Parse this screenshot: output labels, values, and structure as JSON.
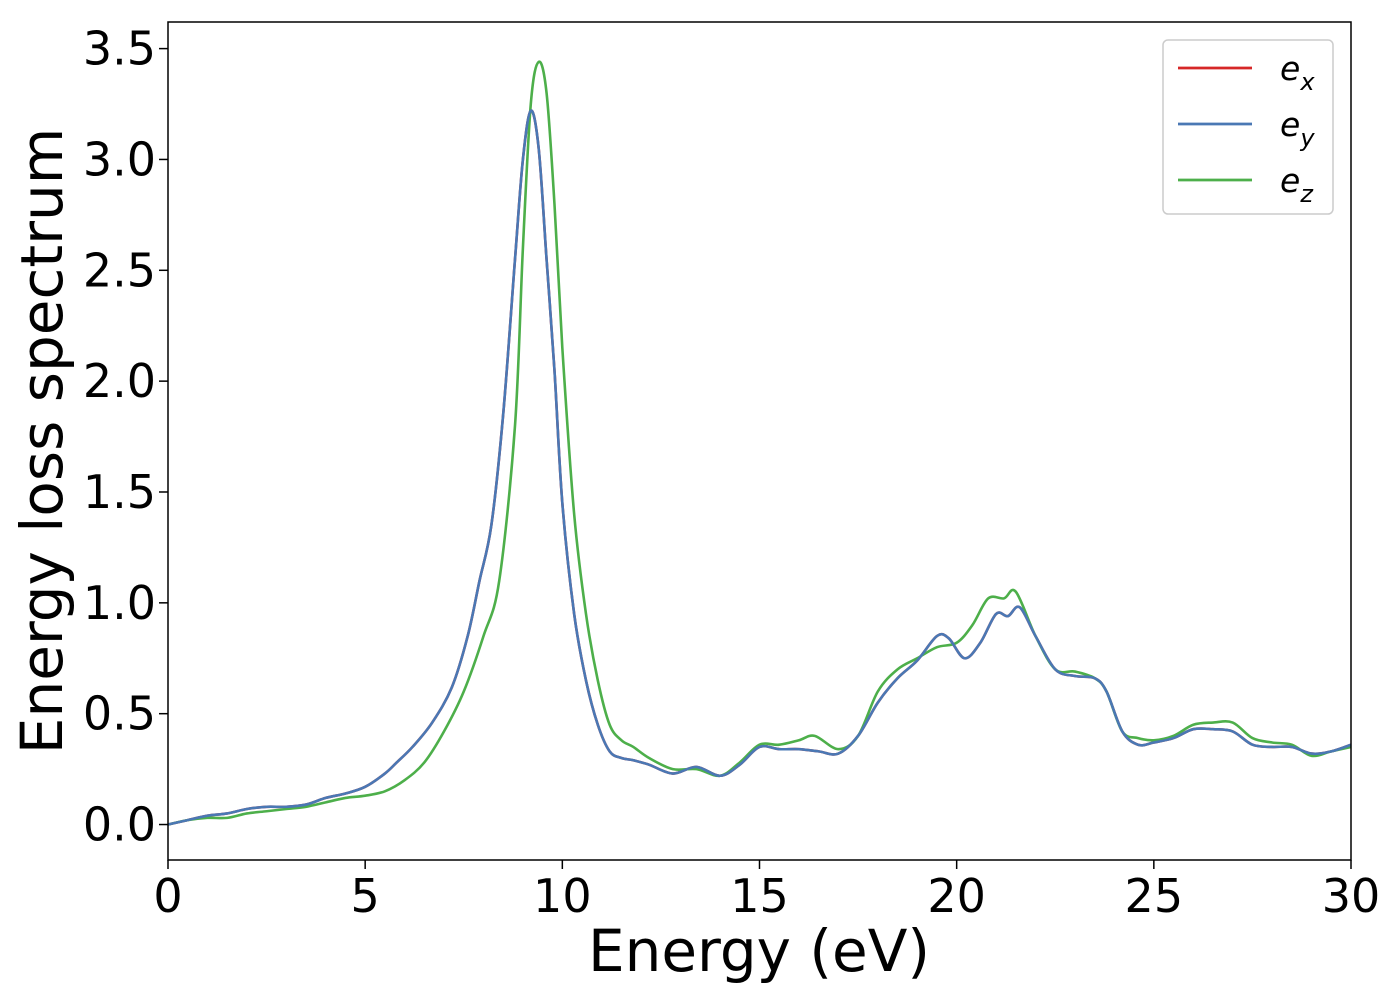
{
  "chart_data": {
    "type": "line",
    "xlabel": "Energy (eV)",
    "ylabel": "Energy loss spectrum",
    "xlim": [
      0,
      30
    ],
    "ylim": [
      -0.16,
      3.62
    ],
    "xticks": [
      "0",
      "5",
      "10",
      "15",
      "20",
      "25",
      "30"
    ],
    "yticks": [
      "0.0",
      "0.5",
      "1.0",
      "1.5",
      "2.0",
      "2.5",
      "3.0",
      "3.5"
    ],
    "grid": false,
    "legend_position": "top-right",
    "series": [
      {
        "name": "e",
        "sub": "x",
        "color": "#d62728",
        "x": [
          0,
          0.5,
          1,
          1.5,
          2,
          2.5,
          3,
          3.5,
          4,
          4.5,
          5,
          5.5,
          5.8,
          6.2,
          6.7,
          7.2,
          7.6,
          7.9,
          8.2,
          8.5,
          8.8,
          9.0,
          9.2,
          9.4,
          9.6,
          9.8,
          10.0,
          10.3,
          10.6,
          10.9,
          11.2,
          11.5,
          11.8,
          12.2,
          12.8,
          13.4,
          14.0,
          14.5,
          15.0,
          15.5,
          16.0,
          16.5,
          17.0,
          17.5,
          18.0,
          18.5,
          19.0,
          19.5,
          19.8,
          20.2,
          20.6,
          21.0,
          21.3,
          21.6,
          22.0,
          22.5,
          23.0,
          23.5,
          23.8,
          24.2,
          24.6,
          25.0,
          25.5,
          26.0,
          26.5,
          27.0,
          27.5,
          28.0,
          28.5,
          29.0,
          29.5,
          30.0
        ],
        "values": [
          0.0,
          0.02,
          0.04,
          0.05,
          0.07,
          0.08,
          0.08,
          0.09,
          0.12,
          0.14,
          0.17,
          0.23,
          0.28,
          0.35,
          0.46,
          0.62,
          0.85,
          1.1,
          1.35,
          1.85,
          2.55,
          3.0,
          3.22,
          3.05,
          2.55,
          2.05,
          1.45,
          0.95,
          0.65,
          0.45,
          0.33,
          0.3,
          0.29,
          0.27,
          0.23,
          0.26,
          0.22,
          0.27,
          0.35,
          0.34,
          0.34,
          0.33,
          0.32,
          0.4,
          0.55,
          0.66,
          0.74,
          0.85,
          0.84,
          0.75,
          0.82,
          0.95,
          0.94,
          0.98,
          0.85,
          0.7,
          0.67,
          0.66,
          0.6,
          0.42,
          0.36,
          0.37,
          0.39,
          0.43,
          0.43,
          0.42,
          0.36,
          0.35,
          0.35,
          0.32,
          0.33,
          0.36
        ]
      },
      {
        "name": "e",
        "sub": "y",
        "color": "#4a78b4",
        "x": [
          0,
          0.5,
          1,
          1.5,
          2,
          2.5,
          3,
          3.5,
          4,
          4.5,
          5,
          5.5,
          5.8,
          6.2,
          6.7,
          7.2,
          7.6,
          7.9,
          8.2,
          8.5,
          8.8,
          9.0,
          9.2,
          9.4,
          9.6,
          9.8,
          10.0,
          10.3,
          10.6,
          10.9,
          11.2,
          11.5,
          11.8,
          12.2,
          12.8,
          13.4,
          14.0,
          14.5,
          15.0,
          15.5,
          16.0,
          16.5,
          17.0,
          17.5,
          18.0,
          18.5,
          19.0,
          19.5,
          19.8,
          20.2,
          20.6,
          21.0,
          21.3,
          21.6,
          22.0,
          22.5,
          23.0,
          23.5,
          23.8,
          24.2,
          24.6,
          25.0,
          25.5,
          26.0,
          26.5,
          27.0,
          27.5,
          28.0,
          28.5,
          29.0,
          29.5,
          30.0
        ],
        "values": [
          0.0,
          0.02,
          0.04,
          0.05,
          0.07,
          0.08,
          0.08,
          0.09,
          0.12,
          0.14,
          0.17,
          0.23,
          0.28,
          0.35,
          0.46,
          0.62,
          0.85,
          1.1,
          1.35,
          1.85,
          2.55,
          3.0,
          3.22,
          3.05,
          2.55,
          2.05,
          1.45,
          0.95,
          0.65,
          0.45,
          0.33,
          0.3,
          0.29,
          0.27,
          0.23,
          0.26,
          0.22,
          0.27,
          0.35,
          0.34,
          0.34,
          0.33,
          0.32,
          0.4,
          0.55,
          0.66,
          0.74,
          0.85,
          0.84,
          0.75,
          0.82,
          0.95,
          0.94,
          0.98,
          0.85,
          0.7,
          0.67,
          0.66,
          0.6,
          0.42,
          0.36,
          0.37,
          0.39,
          0.43,
          0.43,
          0.42,
          0.36,
          0.35,
          0.35,
          0.32,
          0.33,
          0.36
        ]
      },
      {
        "name": "e",
        "sub": "z",
        "color": "#4daf4a",
        "x": [
          0,
          0.5,
          1,
          1.5,
          2,
          2.5,
          3,
          3.5,
          4,
          4.5,
          5,
          5.5,
          6.0,
          6.5,
          7.0,
          7.5,
          8.0,
          8.4,
          8.8,
          9.0,
          9.2,
          9.4,
          9.6,
          9.8,
          10.0,
          10.3,
          10.6,
          10.9,
          11.2,
          11.5,
          11.8,
          12.2,
          12.8,
          13.4,
          14.0,
          14.5,
          15.0,
          15.5,
          16.0,
          16.4,
          17.0,
          17.5,
          18.0,
          18.5,
          19.0,
          19.5,
          20.0,
          20.4,
          20.8,
          21.2,
          21.5,
          22.0,
          22.5,
          23.0,
          23.5,
          23.8,
          24.2,
          24.6,
          25.0,
          25.5,
          26.0,
          26.5,
          27.0,
          27.5,
          28.0,
          28.5,
          29.0,
          29.5,
          30.0
        ],
        "values": [
          0.0,
          0.02,
          0.03,
          0.03,
          0.05,
          0.06,
          0.07,
          0.08,
          0.1,
          0.12,
          0.13,
          0.15,
          0.2,
          0.28,
          0.42,
          0.6,
          0.85,
          1.1,
          1.8,
          2.6,
          3.25,
          3.44,
          3.3,
          2.8,
          2.15,
          1.4,
          0.95,
          0.65,
          0.45,
          0.38,
          0.35,
          0.3,
          0.25,
          0.25,
          0.22,
          0.28,
          0.36,
          0.36,
          0.38,
          0.4,
          0.34,
          0.4,
          0.6,
          0.7,
          0.75,
          0.8,
          0.82,
          0.9,
          1.02,
          1.02,
          1.05,
          0.85,
          0.7,
          0.69,
          0.66,
          0.6,
          0.42,
          0.39,
          0.38,
          0.4,
          0.45,
          0.46,
          0.46,
          0.39,
          0.37,
          0.36,
          0.31,
          0.33,
          0.35
        ]
      }
    ]
  }
}
